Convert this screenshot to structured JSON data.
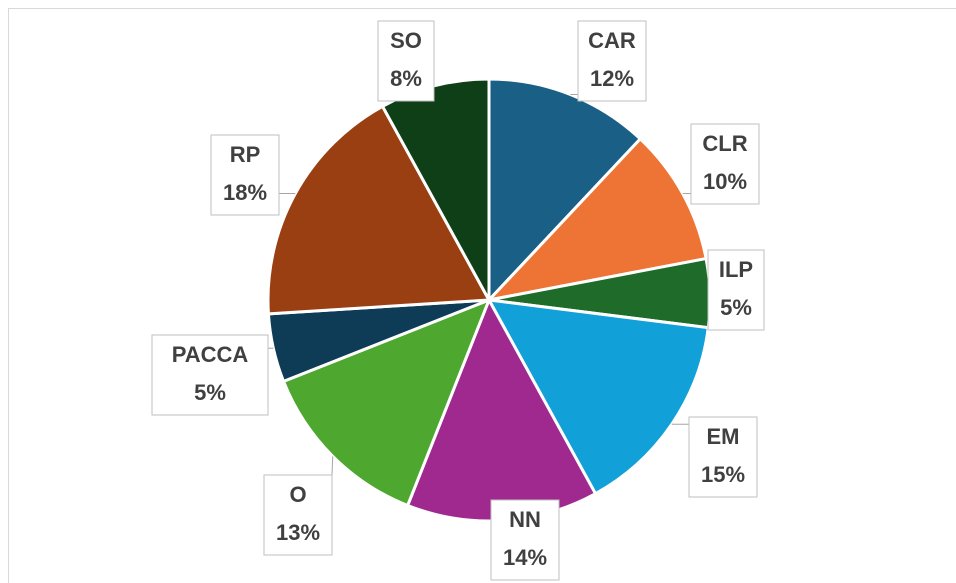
{
  "chart_data": {
    "type": "pie",
    "categories": [
      "CAR",
      "CLR",
      "ILP",
      "EM",
      "NN",
      "O",
      "PACCA",
      "RP",
      "SO"
    ],
    "values": [
      12,
      10,
      5,
      15,
      14,
      13,
      5,
      18,
      8
    ],
    "value_labels": [
      "12%",
      "10%",
      "5%",
      "15%",
      "14%",
      "13%",
      "5%",
      "18%",
      "8%"
    ],
    "colors": [
      "#1a5f86",
      "#ed7434",
      "#1e6b2a",
      "#12a0d8",
      "#a0298f",
      "#4ea72e",
      "#0e3b55",
      "#9a3f11",
      "#0f3f17"
    ]
  }
}
